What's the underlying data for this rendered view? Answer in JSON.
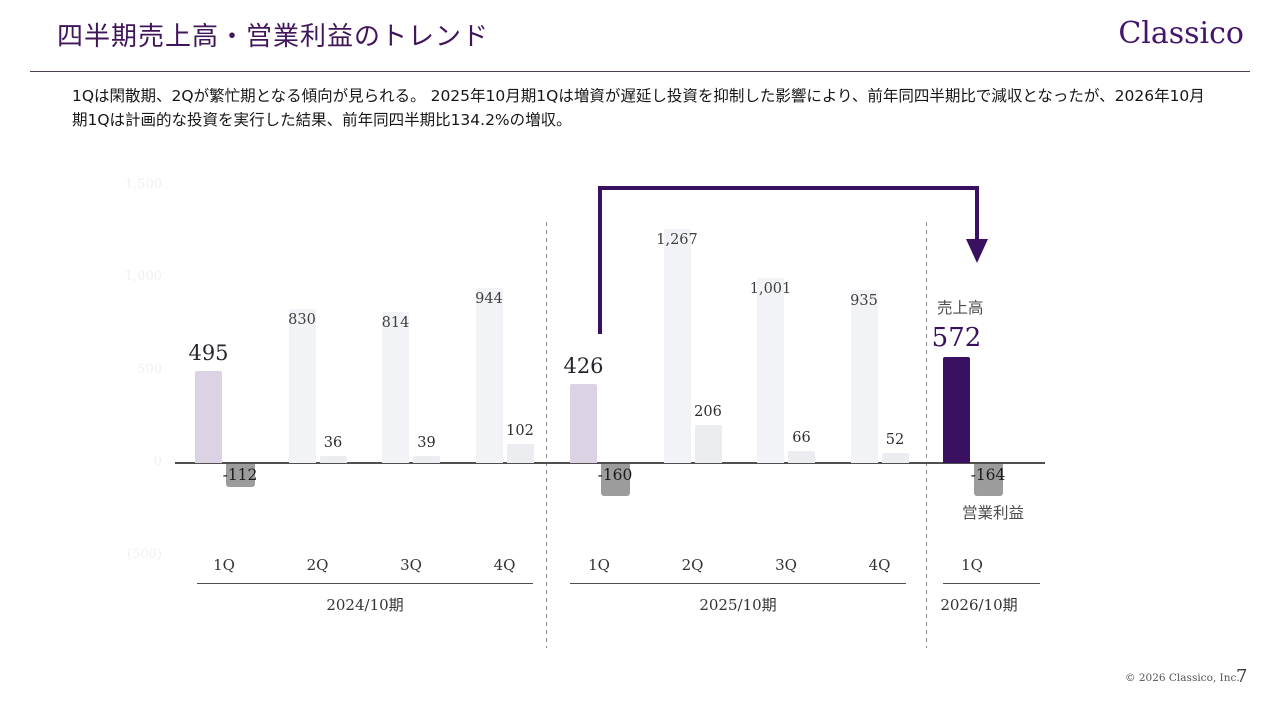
{
  "slide": {
    "title": "四半期売上高・営業利益のトレンド",
    "logo": "Classico",
    "lead": "1Qは閑散期、2Qが繁忙期となる傾向が見られる。 2025年10月期1Qは増資が遅延し投資を抑制した影響により、前年同四半期比で減収となったが、2026年10月期1Qは計画的な投資を実行した結果、前年同四半期比134.2%の増収。",
    "footer": {
      "copyright": "© 2026 Classico, Inc.",
      "page": "7"
    }
  },
  "chart_data": {
    "type": "bar",
    "title": "四半期売上高・営業利益のトレンド",
    "categories": [
      "1Q",
      "2Q",
      "3Q",
      "4Q",
      "1Q",
      "2Q",
      "3Q",
      "4Q",
      "1Q"
    ],
    "series": [
      {
        "name": "売上高",
        "values": [
          495,
          830,
          814,
          944,
          426,
          1267,
          1001,
          935,
          572
        ]
      },
      {
        "name": "営業利益",
        "values": [
          -112,
          36,
          39,
          102,
          -160,
          206,
          66,
          52,
          -164
        ]
      }
    ],
    "series_labels": {
      "revenue": "売上高",
      "profit": "営業利益"
    },
    "y_axis": {
      "range": [
        -500,
        1500
      ],
      "ticks": [
        {
          "label": "1,500",
          "value": 1500
        },
        {
          "label": "1,000",
          "value": 1000
        },
        {
          "label": "500",
          "value": 500
        },
        {
          "label": "0",
          "value": 0
        },
        {
          "label": "(500)",
          "value": -500
        }
      ]
    },
    "groups": [
      {
        "period": "2024/10期",
        "quarters": [
          {
            "q": "1Q",
            "revenue": 495,
            "revenue_label": "495",
            "profit": -112,
            "profit_label": "-112",
            "style": "lavender"
          },
          {
            "q": "2Q",
            "revenue": 830,
            "revenue_label": "830",
            "profit": 36,
            "profit_label": "36",
            "style": "plain"
          },
          {
            "q": "3Q",
            "revenue": 814,
            "revenue_label": "814",
            "profit": 39,
            "profit_label": "39",
            "style": "plain"
          },
          {
            "q": "4Q",
            "revenue": 944,
            "revenue_label": "944",
            "profit": 102,
            "profit_label": "102",
            "style": "plain"
          }
        ]
      },
      {
        "period": "2025/10期",
        "quarters": [
          {
            "q": "1Q",
            "revenue": 426,
            "revenue_label": "426",
            "profit": -160,
            "profit_label": "-160",
            "style": "lavender"
          },
          {
            "q": "2Q",
            "revenue": 1267,
            "revenue_label": "1,267",
            "profit": 206,
            "profit_label": "206",
            "style": "plain"
          },
          {
            "q": "3Q",
            "revenue": 1001,
            "revenue_label": "1,001",
            "profit": 66,
            "profit_label": "66",
            "style": "plain"
          },
          {
            "q": "4Q",
            "revenue": 935,
            "revenue_label": "935",
            "profit": 52,
            "profit_label": "52",
            "style": "plain"
          }
        ]
      },
      {
        "period": "2026/10期",
        "quarters": [
          {
            "q": "1Q",
            "revenue": 572,
            "revenue_label": "572",
            "profit": -164,
            "profit_label": "-164",
            "style": "purple"
          }
        ]
      }
    ],
    "annotation_arrow": {
      "from": "2025/10期 1Q 売上高",
      "to": "2026/10期 1Q 売上高"
    },
    "legend_position": "right-of-last-bars",
    "grid": false,
    "colors": {
      "accent_purple": "#3A1161",
      "lavender_bar": "#DBD3E4",
      "plain_revenue_bar": "#F2F3F6",
      "plain_profit_bar": "#EBEDF0",
      "negative_profit_bar": "#9C9C9C",
      "axis_line": "#4F4F4F",
      "faint_tick_text": "#F1EFF3"
    }
  }
}
